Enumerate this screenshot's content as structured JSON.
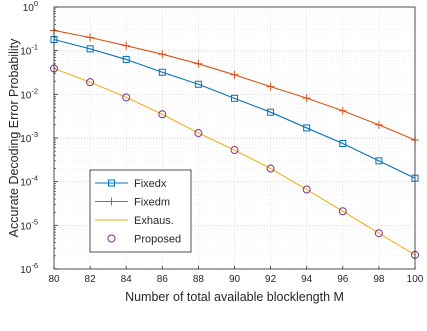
{
  "chart_data": {
    "type": "line",
    "title": "",
    "xlabel": "Number of total available blocklength M",
    "ylabel": "Accurate Decoding Error Probability",
    "x": [
      80,
      82,
      84,
      86,
      88,
      90,
      92,
      94,
      96,
      98,
      100
    ],
    "xlim": [
      80,
      100
    ],
    "ylim": [
      1e-06,
      1
    ],
    "yscale": "log",
    "xticks": [
      "80",
      "82",
      "84",
      "86",
      "88",
      "90",
      "92",
      "94",
      "96",
      "98",
      "100"
    ],
    "yticks": [
      {
        "base": "10",
        "exp": "-6"
      },
      {
        "base": "10",
        "exp": "-5"
      },
      {
        "base": "10",
        "exp": "-4"
      },
      {
        "base": "10",
        "exp": "-3"
      },
      {
        "base": "10",
        "exp": "-2"
      },
      {
        "base": "10",
        "exp": "-1"
      },
      {
        "base": "10",
        "exp": "0"
      }
    ],
    "grid": true,
    "legend_position": "bottom-left",
    "series": [
      {
        "name": "Fixedx",
        "color": "#0072BD",
        "marker": "square",
        "values": [
          0.18,
          0.11,
          0.063,
          0.032,
          0.017,
          0.0081,
          0.0039,
          0.0017,
          0.00075,
          0.0003,
          0.00012
        ]
      },
      {
        "name": "Fixedm",
        "color": "#D95319",
        "marker": "plus",
        "values": [
          0.29,
          0.2,
          0.13,
          0.083,
          0.05,
          0.028,
          0.015,
          0.0082,
          0.0042,
          0.002,
          0.0009
        ]
      },
      {
        "name": "Exhaus.",
        "color": "#EDB120",
        "marker": "none",
        "values": [
          0.039,
          0.019,
          0.0085,
          0.0035,
          0.0013,
          0.00053,
          0.0002,
          6.6e-05,
          2.1e-05,
          6.6e-06,
          2.1e-06
        ]
      },
      {
        "name": "Proposed",
        "color": "#7E2F8E",
        "marker": "circle-open",
        "line": false,
        "values": [
          0.039,
          0.019,
          0.0085,
          0.0035,
          0.0013,
          0.00053,
          0.0002,
          6.6e-05,
          2.1e-05,
          6.6e-06,
          2.1e-06
        ]
      }
    ]
  }
}
